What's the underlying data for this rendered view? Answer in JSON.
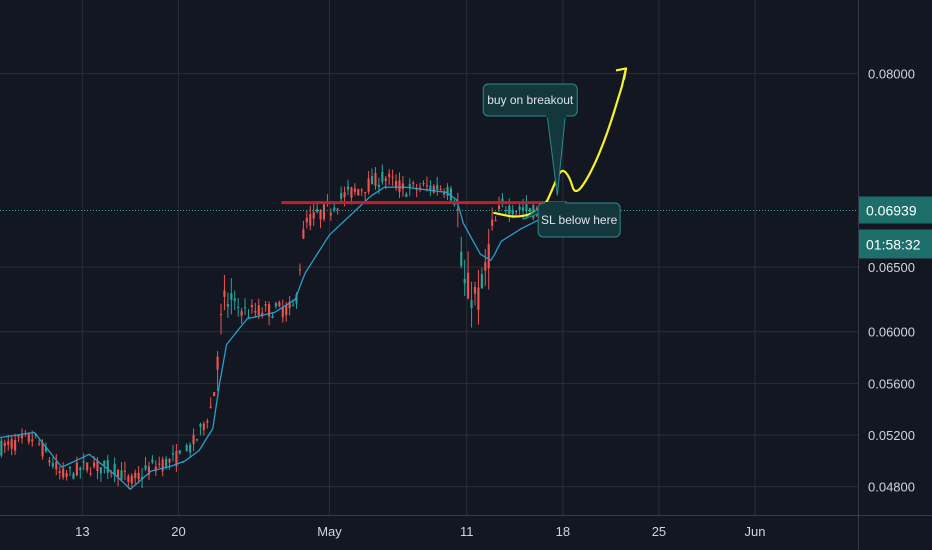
{
  "colors": {
    "background": "#131722",
    "grid": "#2a2e39",
    "up": "#26a69a",
    "down": "#ef5350",
    "ma_line": "#2a9dc9",
    "resistance": "#c21f2a",
    "projection": "#f7f230",
    "price_line": "#26a69a",
    "annotation_fill": "#14363d",
    "annotation_border": "#2a8c8c",
    "badge_price": "#1d6f6b",
    "badge_timer": "#1d6f6b"
  },
  "chart_data": {
    "type": "candlestick",
    "x_ticks": [
      {
        "label": "13",
        "day": 13
      },
      {
        "label": "20",
        "day": 20
      },
      {
        "label": "May",
        "day": 31
      },
      {
        "label": "11",
        "day": 41
      },
      {
        "label": "18",
        "day": 48
      },
      {
        "label": "25",
        "day": 55
      },
      {
        "label": "Jun",
        "day": 62
      }
    ],
    "y_ticks": [
      "0.08000",
      "0.06500",
      "0.06000",
      "0.05600",
      "0.05200",
      "0.04800"
    ],
    "ylim": [
      0.0458,
      0.0857
    ],
    "xlim": [
      7.0,
      69.5
    ],
    "grid": true,
    "current_price": "0.06939",
    "current_price_value": 0.06939,
    "countdown": "01:58:32",
    "resistance_level": 0.07,
    "resistance_from_day": 27.5,
    "resistance_to_day": 48.3,
    "anchors": [
      [
        7.0,
        0.051,
        0.0518
      ],
      [
        9.5,
        0.0518,
        0.0522
      ],
      [
        11.5,
        0.0488,
        0.0495
      ],
      [
        13.5,
        0.0496,
        0.0505
      ],
      [
        15.5,
        0.0494,
        0.0488
      ],
      [
        16.5,
        0.0483,
        0.0478
      ],
      [
        18.0,
        0.0495,
        0.0492
      ],
      [
        19.5,
        0.05,
        0.0496
      ],
      [
        20.5,
        0.0505,
        0.05
      ],
      [
        21.5,
        0.052,
        0.0508
      ],
      [
        22.5,
        0.0545,
        0.0525
      ],
      [
        23.0,
        0.06,
        0.056
      ],
      [
        23.5,
        0.0625,
        0.059
      ],
      [
        25.0,
        0.0615,
        0.061
      ],
      [
        27.0,
        0.0617,
        0.0615
      ],
      [
        28.5,
        0.0618,
        0.0625
      ],
      [
        29.2,
        0.0685,
        0.0645
      ],
      [
        31.0,
        0.0695,
        0.0675
      ],
      [
        32.0,
        0.0705,
        0.0685
      ],
      [
        34.0,
        0.0715,
        0.0705
      ],
      [
        35.0,
        0.072,
        0.0712
      ],
      [
        36.5,
        0.071,
        0.0712
      ],
      [
        38.0,
        0.0712,
        0.071
      ],
      [
        39.5,
        0.0712,
        0.0708
      ],
      [
        40.3,
        0.07,
        0.0702
      ],
      [
        40.7,
        0.0635,
        0.0685
      ],
      [
        42.0,
        0.0625,
        0.066
      ],
      [
        42.8,
        0.0675,
        0.0655
      ],
      [
        43.5,
        0.0698,
        0.067
      ],
      [
        45.0,
        0.0695,
        0.068
      ],
      [
        46.5,
        0.0693,
        0.0688
      ]
    ],
    "projection_path": [
      [
        43.0,
        0.0692
      ],
      [
        44.8,
        0.0688
      ],
      [
        46.6,
        0.0695
      ],
      [
        47.3,
        0.0712
      ],
      [
        47.9,
        0.0727
      ],
      [
        48.5,
        0.072
      ],
      [
        48.9,
        0.0705
      ],
      [
        50.0,
        0.0722
      ],
      [
        51.2,
        0.0752
      ],
      [
        52.3,
        0.079
      ]
    ],
    "projection_arrow": {
      "tip": [
        52.6,
        0.0804
      ]
    }
  },
  "annotations": {
    "buy_label": "buy on breakout",
    "sl_label": "SL below here"
  }
}
